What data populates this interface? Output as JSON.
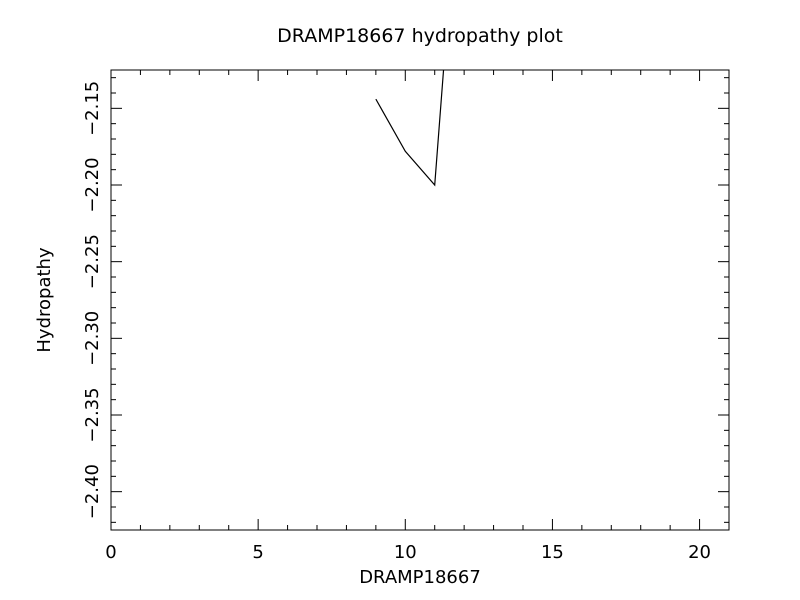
{
  "chart_data": {
    "type": "line",
    "title": "DRAMP18667 hydropathy plot",
    "xlabel": "DRAMP18667",
    "ylabel": "Hydropathy",
    "xlim": [
      0,
      21
    ],
    "ylim": [
      -2.425,
      -2.125
    ],
    "x_ticks": [
      0,
      5,
      10,
      15,
      20
    ],
    "x_tick_labels": [
      "0",
      "5",
      "10",
      "15",
      "20"
    ],
    "y_ticks": [
      -2.4,
      -2.35,
      -2.3,
      -2.25,
      -2.2,
      -2.15
    ],
    "y_tick_labels": [
      "−2.40",
      "−2.35",
      "−2.30",
      "−2.25",
      "−2.20",
      "−2.15"
    ],
    "grid": false,
    "series": [
      {
        "x": [
          9,
          10,
          11,
          11.3
        ],
        "y": [
          -2.144,
          -2.178,
          -2.2,
          -2.125
        ]
      }
    ]
  }
}
